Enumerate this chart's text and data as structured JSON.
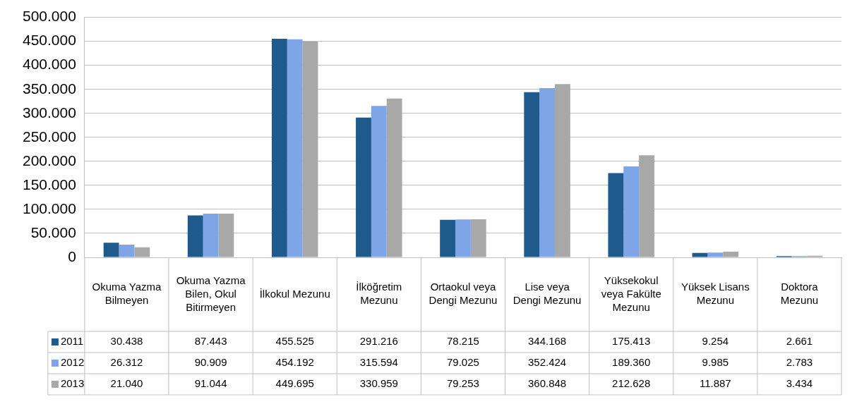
{
  "chart_data": {
    "type": "bar",
    "categories": [
      "Okuma Yazma Bilmeyen",
      "Okuma Yazma Bilen, Okul Bitirmeyen",
      "İlkokul Mezunu",
      "İlköğretim Mezunu",
      "Ortaokul veya Dengi Mezunu",
      "Lise veya Dengi Mezunu",
      "Yüksekokul veya Fakülte Mezunu",
      "Yüksek Lisans Mezunu",
      "Doktora Mezunu"
    ],
    "series": [
      {
        "name": "2011",
        "color": "#1f5a8c",
        "values": [
          30438,
          87443,
          455525,
          291216,
          78215,
          344168,
          175413,
          9254,
          2661
        ],
        "value_labels": [
          "30.438",
          "87.443",
          "455.525",
          "291.216",
          "78.215",
          "344.168",
          "175.413",
          "9.254",
          "2.661"
        ]
      },
      {
        "name": "2012",
        "color": "#7ea6e6",
        "values": [
          26312,
          90909,
          454192,
          315594,
          79025,
          352424,
          189360,
          9985,
          2783
        ],
        "value_labels": [
          "26.312",
          "90.909",
          "454.192",
          "315.594",
          "79.025",
          "352.424",
          "189.360",
          "9.985",
          "2.783"
        ]
      },
      {
        "name": "2013",
        "color": "#a8a8a8",
        "values": [
          21040,
          91044,
          449695,
          330959,
          79253,
          360848,
          212628,
          11887,
          3434
        ],
        "value_labels": [
          "21.040",
          "91.044",
          "449.695",
          "330.959",
          "79.253",
          "360.848",
          "212.628",
          "11.887",
          "3.434"
        ]
      }
    ],
    "ylim": [
      0,
      500000
    ],
    "yticks": [
      {
        "value": 0,
        "label": "0"
      },
      {
        "value": 50000,
        "label": "50.000"
      },
      {
        "value": 100000,
        "label": "100.000"
      },
      {
        "value": 150000,
        "label": "150.000"
      },
      {
        "value": 200000,
        "label": "200.000"
      },
      {
        "value": 250000,
        "label": "250.000"
      },
      {
        "value": 300000,
        "label": "300.000"
      },
      {
        "value": 350000,
        "label": "350.000"
      },
      {
        "value": 400000,
        "label": "400.000"
      },
      {
        "value": 450000,
        "label": "450.000"
      },
      {
        "value": 500000,
        "label": "500.000"
      }
    ],
    "grid": "y",
    "legend": "bottom left"
  }
}
